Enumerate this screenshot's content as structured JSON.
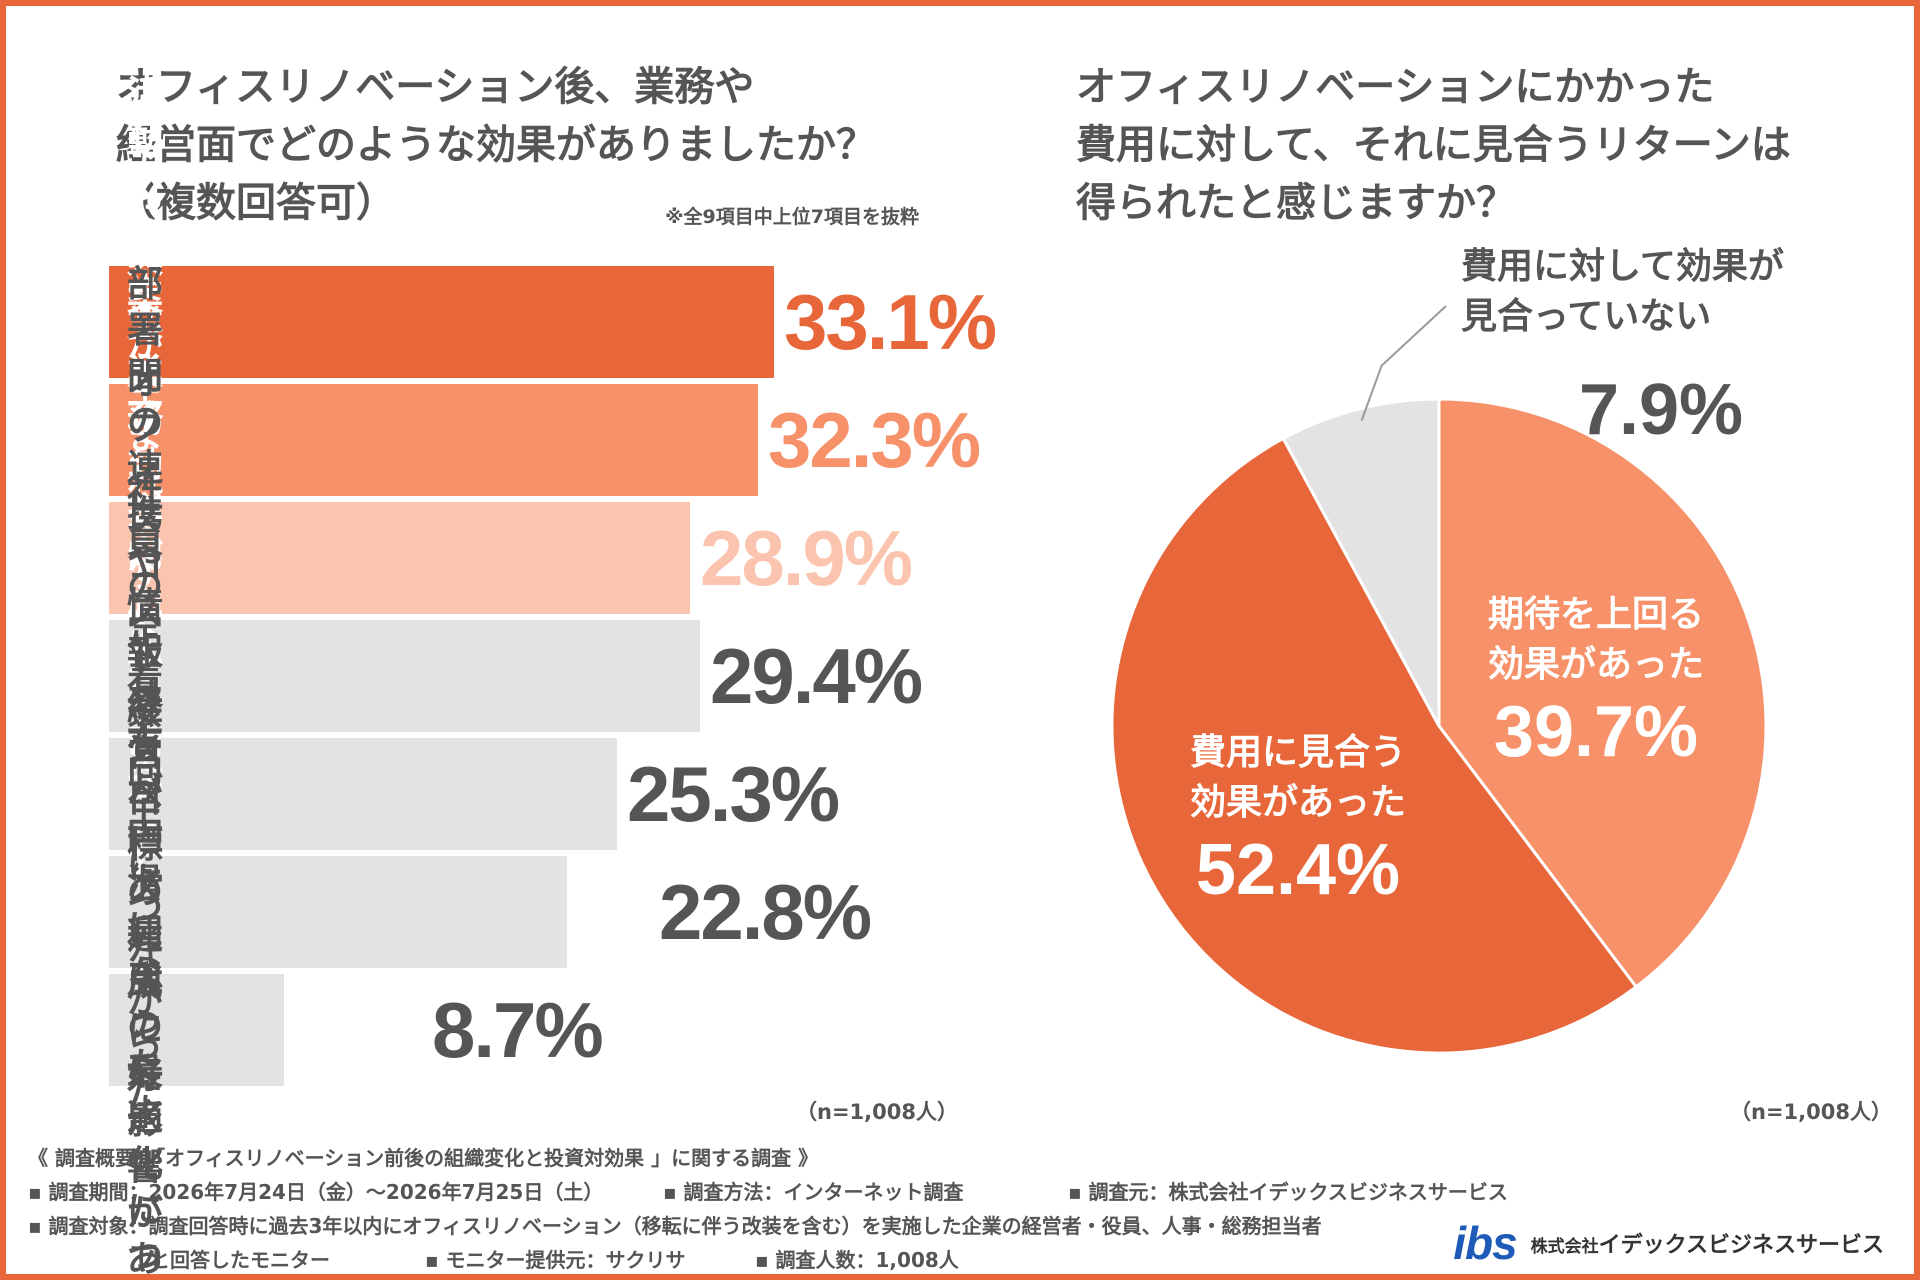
{
  "left": {
    "title": "オフィスリノベーション後、業務や\n経営面でどのような効果がありましたか？\n（複数回答可）",
    "note": "※全9項目中上位7項目を抜粋",
    "n_label": "（n=1,008人）"
  },
  "right": {
    "title": "オフィスリノベーションにかかった\n費用に対して、それに見合うリターンは\n得られたと感じますか？",
    "n_label": "（n=1,008人）"
  },
  "chart_data": [
    {
      "type": "bar",
      "orientation": "horizontal",
      "categories": [
        "新しいアイデアや提案が\n生まれやすくなった",
        "採用活動での企業イメージ向上\nにつながった",
        "業務効率が向上した",
        "部署間の連携や情報共有\nが円滑になった",
        "社員の定着率向上に\nつながった",
        "オフィスコストやスペース利用\nの最適化につながった",
        "経営目標の達成に\n好影響があった"
      ],
      "values": [
        33.1,
        32.3,
        28.9,
        29.4,
        25.3,
        22.8,
        8.7
      ],
      "value_labels": [
        "33.1%",
        "32.3%",
        "28.9%",
        "29.4%",
        "25.3%",
        "22.8%",
        "8.7%"
      ],
      "bar_colors": [
        "#E8673A",
        "#F7916A",
        "#FBC4AE",
        "#E3E3E3",
        "#E3E3E3",
        "#E3E3E3",
        "#E3E3E3"
      ],
      "label_colors": [
        "#ffffff",
        "#ffffff",
        "#ffffff",
        "#555555",
        "#555555",
        "#555555",
        "#555555"
      ],
      "value_colors": [
        "#E8673A",
        "#F7916A",
        "#FBC4AE",
        "#555555",
        "#555555",
        "#555555",
        "#555555"
      ],
      "xlim": [
        0,
        33.1
      ],
      "title": "オフィスリノベーション後、業務や経営面でどのような効果がありましたか？（複数回答可）"
    },
    {
      "type": "pie",
      "title": "オフィスリノベーションにかかった費用に対して、それに見合うリターンは得られたと感じますか？",
      "slices": [
        {
          "label": "期待を上回る\n効果があった",
          "value": 39.7,
          "value_label": "39.7%",
          "color": "#F7916A",
          "text_color": "#ffffff"
        },
        {
          "label": "費用に見合う\n効果があった",
          "value": 52.4,
          "value_label": "52.4%",
          "color": "#E8673A",
          "text_color": "#ffffff"
        },
        {
          "label": "費用に対して効果が\n見合っていない",
          "value": 7.9,
          "value_label": "7.9%",
          "color": "#E3E3E3",
          "text_color": "#555555"
        }
      ],
      "start_angle_deg": 0,
      "direction": "clockwise"
    }
  ],
  "footer": {
    "summary": "《 調査概要：「オフィスリノベーション前後の組織変化と投資対効果 」に関する調査 》",
    "period": "▪ 調査期間：2026年7月24日（金）〜2026年7月25日（土）",
    "method": "▪ 調査方法：インターネット調査",
    "source": "▪ 調査元：株式会社イデックスビジネスサービス",
    "target": "▪ 調査対象：調査回答時に過去3年以内にオフィスリノベーション（移転に伴う改装を含む）を実施した企業の経営者・役員、人事・総務担当者",
    "target_cont": "と回答したモニター",
    "provider": "▪ モニター提供元：サクリサ",
    "count": "▪ 調査人数：1,008人"
  },
  "logo": {
    "mark": "ibs",
    "company": "株式会社イデックスビジネスサービス",
    "company_prefix": "株式会社",
    "company_name": "イデックスビジネスサービス",
    "mark_color": "#1E5BB8"
  }
}
